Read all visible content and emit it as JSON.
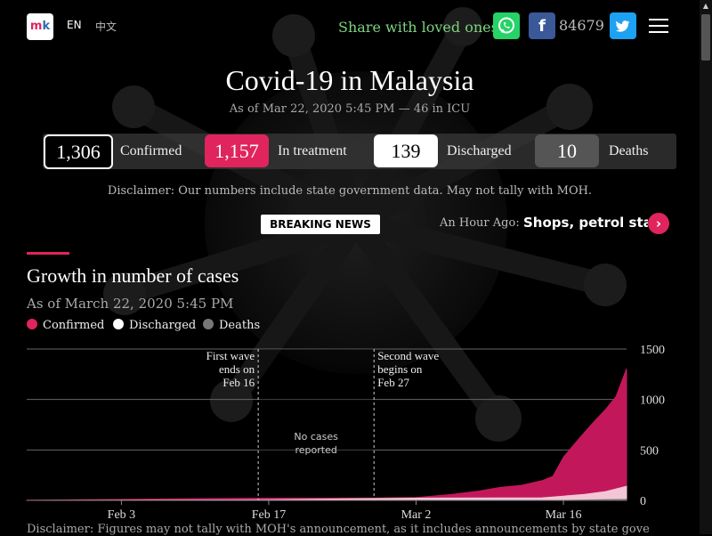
{
  "nav": {
    "logo": {
      "text_m": "m",
      "text_k": "k"
    },
    "lang_en": "EN",
    "lang_zh": "中文",
    "share_text": "Share with loved ones",
    "facebook_letter": "f",
    "facebook_count": "84679"
  },
  "header": {
    "title": "Covid-19 in Malaysia",
    "subtitle": "As of Mar 22, 2020 5:45 PM — 46 in ICU"
  },
  "stats": {
    "confirmed": {
      "value": "1,306",
      "label": "Confirmed"
    },
    "treatment": {
      "value": "1,157",
      "label": "In treatment"
    },
    "discharged": {
      "value": "139",
      "label": "Discharged"
    },
    "deaths": {
      "value": "10",
      "label": "Deaths"
    }
  },
  "disclaimer_top": "Disclaimer: Our numbers include state government data. May not tally with MOH.",
  "breaking": {
    "label": "BREAKING NEWS",
    "time": "An Hour Ago:",
    "headline": "Shops, petrol stations"
  },
  "section": {
    "title": "Growth in number of cases",
    "subtitle": "As of March 22, 2020 5:45 PM"
  },
  "legend": [
    {
      "label": "Confirmed",
      "color": "#e0245e"
    },
    {
      "label": "Discharged",
      "color": "#ffffff"
    },
    {
      "label": "Deaths",
      "color": "#777777"
    }
  ],
  "chart_data": {
    "type": "area",
    "x_ticks": [
      "Feb 3",
      "Feb 17",
      "Mar 2",
      "Mar 16"
    ],
    "y_ticks": [
      0,
      500,
      1000,
      1500
    ],
    "ylim": [
      0,
      1500
    ],
    "xlim": [
      "2020-01-25",
      "2020-03-22"
    ],
    "grid": true,
    "legend_position": "top-left",
    "annotations": [
      {
        "date": "2020-02-16",
        "lines": [
          "First wave",
          "ends on",
          "Feb 16"
        ],
        "align": "right"
      },
      {
        "date": "2020-02-27",
        "lines": [
          "Second wave",
          "begins on",
          "Feb 27"
        ],
        "align": "left"
      }
    ],
    "shaded_note": {
      "lines": [
        "No cases",
        "reported"
      ]
    },
    "series": [
      {
        "name": "Confirmed",
        "color": "#c2185b",
        "x": [
          "2020-01-25",
          "2020-02-03",
          "2020-02-10",
          "2020-02-16",
          "2020-02-27",
          "2020-03-02",
          "2020-03-05",
          "2020-03-08",
          "2020-03-10",
          "2020-03-12",
          "2020-03-14",
          "2020-03-15",
          "2020-03-16",
          "2020-03-17",
          "2020-03-18",
          "2020-03-19",
          "2020-03-20",
          "2020-03-21",
          "2020-03-22"
        ],
        "values": [
          3,
          10,
          18,
          22,
          23,
          29,
          55,
          93,
          129,
          149,
          197,
          238,
          428,
          553,
          673,
          790,
          900,
          1030,
          1306
        ]
      },
      {
        "name": "Discharged",
        "color": "#f3c6d6",
        "x": [
          "2020-01-25",
          "2020-02-16",
          "2020-03-02",
          "2020-03-10",
          "2020-03-14",
          "2020-03-16",
          "2020-03-18",
          "2020-03-20",
          "2020-03-22"
        ],
        "values": [
          0,
          5,
          22,
          24,
          26,
          42,
          60,
          87,
          139
        ]
      },
      {
        "name": "Deaths",
        "color": "#777777",
        "x": [
          "2020-01-25",
          "2020-03-16",
          "2020-03-17",
          "2020-03-20",
          "2020-03-22"
        ],
        "values": [
          0,
          0,
          2,
          8,
          10
        ]
      }
    ]
  },
  "disclaimer_bottom": "Disclaimer: Figures may not tally with MOH's announcement, as it includes announcements by state governments."
}
